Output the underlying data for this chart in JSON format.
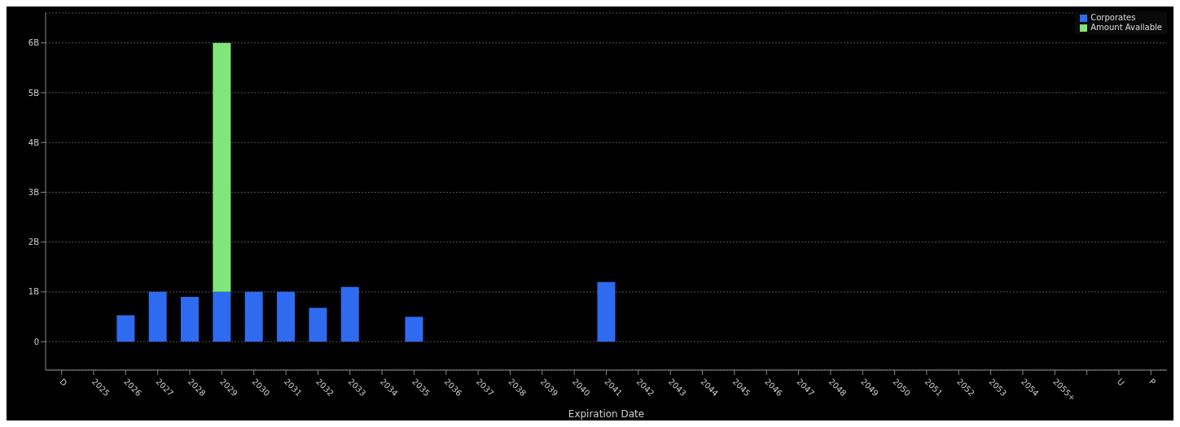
{
  "chart_data": {
    "type": "bar",
    "xlabel": "Expiration Date",
    "stacked": true,
    "categories": [
      "D",
      "2025",
      "2026",
      "2027",
      "2028",
      "2029",
      "2030",
      "2031",
      "2032",
      "2033",
      "2034",
      "2035",
      "2036",
      "2037",
      "2038",
      "2039",
      "2040",
      "2041",
      "2042",
      "2043",
      "2044",
      "2045",
      "2046",
      "2047",
      "2048",
      "2049",
      "2050",
      "2051",
      "2052",
      "2053",
      "2054",
      "2055+",
      null,
      "U",
      "P"
    ],
    "series": [
      {
        "name": "Corporates",
        "color": "#2f6bf0",
        "values": [
          null,
          null,
          0.53,
          1,
          0.9,
          1,
          1,
          1,
          0.68,
          1.1,
          null,
          0.5,
          null,
          null,
          null,
          null,
          null,
          1.2,
          null,
          null,
          null,
          null,
          null,
          null,
          null,
          null,
          null,
          null,
          null,
          null,
          null,
          null,
          null,
          null,
          null
        ]
      },
      {
        "name": "Amount Available",
        "color": "#80e67a",
        "values": [
          null,
          null,
          null,
          null,
          null,
          5,
          null,
          null,
          null,
          null,
          null,
          null,
          null,
          null,
          null,
          null,
          null,
          null,
          null,
          null,
          null,
          null,
          null,
          null,
          null,
          null,
          null,
          null,
          null,
          null,
          null,
          null,
          null,
          null,
          null
        ]
      }
    ],
    "ylim": [
      -0.57,
      6.6
    ],
    "yticks": [
      {
        "value": 0,
        "label": "0"
      },
      {
        "value": 1,
        "label": "1B"
      },
      {
        "value": 2,
        "label": "2B"
      },
      {
        "value": 3,
        "label": "3B"
      },
      {
        "value": 4,
        "label": "4B"
      },
      {
        "value": 5,
        "label": "5B"
      },
      {
        "value": 6,
        "label": "6B"
      }
    ],
    "grid": "y",
    "legend": "top right"
  }
}
